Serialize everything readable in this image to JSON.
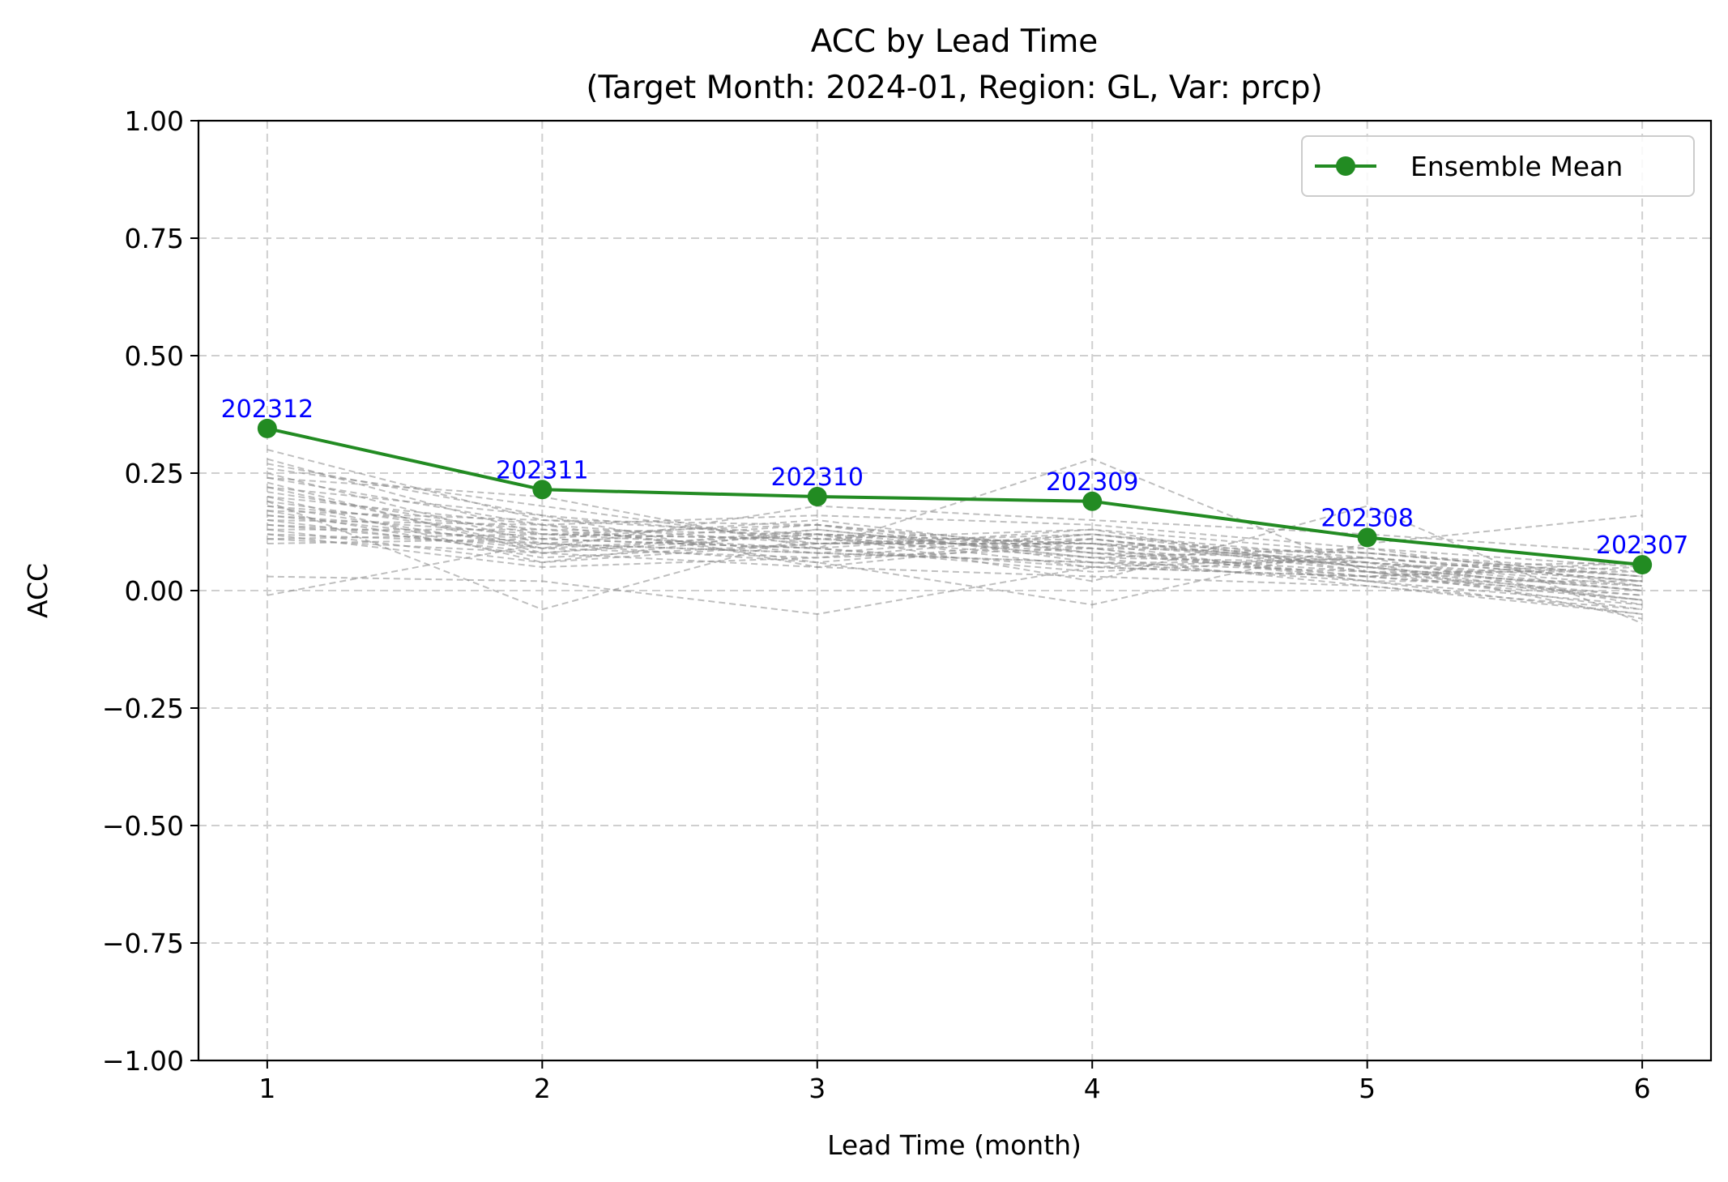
{
  "chart_data": {
    "type": "line",
    "title": "ACC by Lead Time",
    "subtitle": "(Target Month: 2024-01, Region: GL, Var: prcp)",
    "xlabel": "Lead Time (month)",
    "ylabel": "ACC",
    "x": [
      1,
      2,
      3,
      4,
      5,
      6
    ],
    "xlim": [
      0.75,
      6.25
    ],
    "ylim": [
      -1.0,
      1.0
    ],
    "x_ticks": [
      "1",
      "2",
      "3",
      "4",
      "5",
      "6"
    ],
    "y_ticks": [
      {
        "value": 1.0,
        "label": "1.00"
      },
      {
        "value": 0.75,
        "label": "0.75"
      },
      {
        "value": 0.5,
        "label": "0.50"
      },
      {
        "value": 0.25,
        "label": "0.25"
      },
      {
        "value": 0.0,
        "label": "0.00"
      },
      {
        "value": -0.25,
        "label": "−0.25"
      },
      {
        "value": -0.5,
        "label": "−0.50"
      },
      {
        "value": -0.75,
        "label": "−0.75"
      },
      {
        "value": -1.0,
        "label": "−1.00"
      }
    ],
    "grid": true,
    "legend_position": "top-right",
    "series": [
      {
        "name": "Ensemble Mean",
        "color": "#228b22",
        "marker": "circle",
        "values": [
          0.345,
          0.215,
          0.2,
          0.19,
          0.113,
          0.055
        ],
        "point_labels": [
          "202312",
          "202311",
          "202310",
          "202309",
          "202308",
          "202307"
        ]
      }
    ],
    "members": {
      "color": "#8a8a8a",
      "style": "dashed",
      "values": [
        [
          0.3,
          0.15,
          0.12,
          0.1,
          0.06,
          0.02
        ],
        [
          0.28,
          0.12,
          0.14,
          0.08,
          0.04,
          -0.01
        ],
        [
          0.26,
          0.18,
          0.1,
          0.12,
          0.07,
          0.03
        ],
        [
          0.25,
          0.1,
          0.08,
          0.06,
          0.02,
          -0.03
        ],
        [
          0.24,
          0.14,
          0.16,
          0.14,
          0.09,
          0.05
        ],
        [
          0.23,
          0.08,
          0.12,
          0.1,
          0.05,
          0.0
        ],
        [
          0.22,
          0.16,
          0.11,
          0.09,
          0.03,
          -0.02
        ],
        [
          0.21,
          0.12,
          0.09,
          0.13,
          0.08,
          0.04
        ],
        [
          0.2,
          0.06,
          0.13,
          0.07,
          0.06,
          0.01
        ],
        [
          0.2,
          0.14,
          0.1,
          0.11,
          0.04,
          -0.04
        ],
        [
          0.19,
          0.11,
          0.15,
          0.08,
          0.07,
          0.02
        ],
        [
          0.18,
          0.09,
          0.07,
          0.12,
          0.05,
          0.06
        ],
        [
          0.18,
          0.13,
          0.12,
          0.05,
          0.03,
          -0.01
        ],
        [
          0.17,
          0.07,
          0.1,
          0.1,
          0.08,
          0.03
        ],
        [
          0.17,
          0.15,
          0.14,
          0.09,
          0.02,
          -0.05
        ],
        [
          0.16,
          0.1,
          0.08,
          0.06,
          0.06,
          0.0
        ],
        [
          0.16,
          0.12,
          0.11,
          0.13,
          0.04,
          0.04
        ],
        [
          0.15,
          0.08,
          0.13,
          0.07,
          0.09,
          0.01
        ],
        [
          0.15,
          0.14,
          0.06,
          0.11,
          0.05,
          -0.02
        ],
        [
          0.14,
          0.09,
          0.12,
          0.08,
          0.03,
          0.05
        ],
        [
          0.14,
          0.11,
          0.09,
          0.04,
          0.07,
          -0.03
        ],
        [
          0.13,
          0.06,
          0.1,
          0.1,
          0.02,
          0.02
        ],
        [
          0.13,
          0.13,
          0.08,
          0.12,
          0.06,
          -0.06
        ],
        [
          0.12,
          0.1,
          0.14,
          0.06,
          0.04,
          0.01
        ],
        [
          0.12,
          0.05,
          0.07,
          0.09,
          0.08,
          0.03
        ],
        [
          0.11,
          0.12,
          0.11,
          0.07,
          0.01,
          -0.04
        ],
        [
          0.11,
          0.08,
          0.05,
          0.11,
          0.05,
          0.0
        ],
        [
          0.1,
          0.11,
          0.09,
          0.05,
          0.03,
          0.06
        ],
        [
          0.24,
          0.2,
          0.09,
          0.28,
          0.04,
          -0.02
        ],
        [
          0.03,
          0.02,
          -0.05,
          0.05,
          0.07,
          0.02
        ],
        [
          -0.01,
          0.1,
          0.06,
          -0.03,
          0.1,
          0.16
        ],
        [
          0.19,
          -0.04,
          0.12,
          0.02,
          0.18,
          -0.07
        ],
        [
          0.22,
          0.09,
          0.18,
          0.15,
          0.12,
          0.08
        ],
        [
          0.27,
          0.16,
          0.05,
          0.03,
          0.01,
          -0.05
        ]
      ]
    }
  }
}
